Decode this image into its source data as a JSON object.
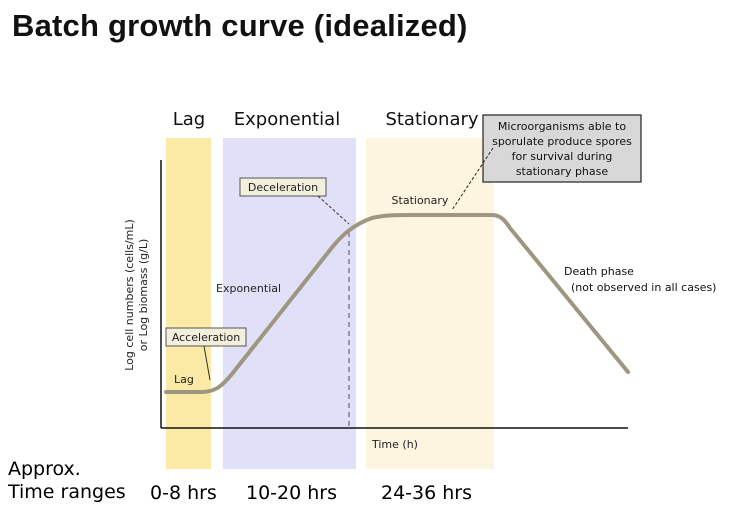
{
  "title": "Batch growth curve (idealized)",
  "phases": {
    "lag": "Lag",
    "exponential": "Exponential",
    "stationary": "Stationary"
  },
  "axes": {
    "y_label_line1": "Log cell numbers (cells/mL)",
    "y_label_line2": "or Log biomass (g/L)",
    "x_label": "Time (h)"
  },
  "curve_labels": {
    "lag": "Lag",
    "acceleration": "Acceleration",
    "exponential": "Exponential",
    "deceleration": "Deceleration",
    "stationary": "Stationary",
    "death": "Death phase",
    "death_note": "(not observed in all cases)"
  },
  "callout": {
    "line1": "Microorganisms able to",
    "line2": "sporulate produce spores",
    "line3": "for survival during",
    "line4": "stationary phase"
  },
  "time_ranges": {
    "label_line1": "Approx.",
    "label_line2": "Time ranges",
    "lag": "0-8 hrs",
    "exponential": "10-20 hrs",
    "stationary": "24-36 hrs"
  },
  "colors": {
    "lag_band": "#fbeaa5",
    "exponential_band": "#e0e0f8",
    "stationary_band": "#fdf5df",
    "curve": "#9e9680",
    "label_box": "#f2f0dc",
    "callout_box": "#d8d8d8"
  }
}
